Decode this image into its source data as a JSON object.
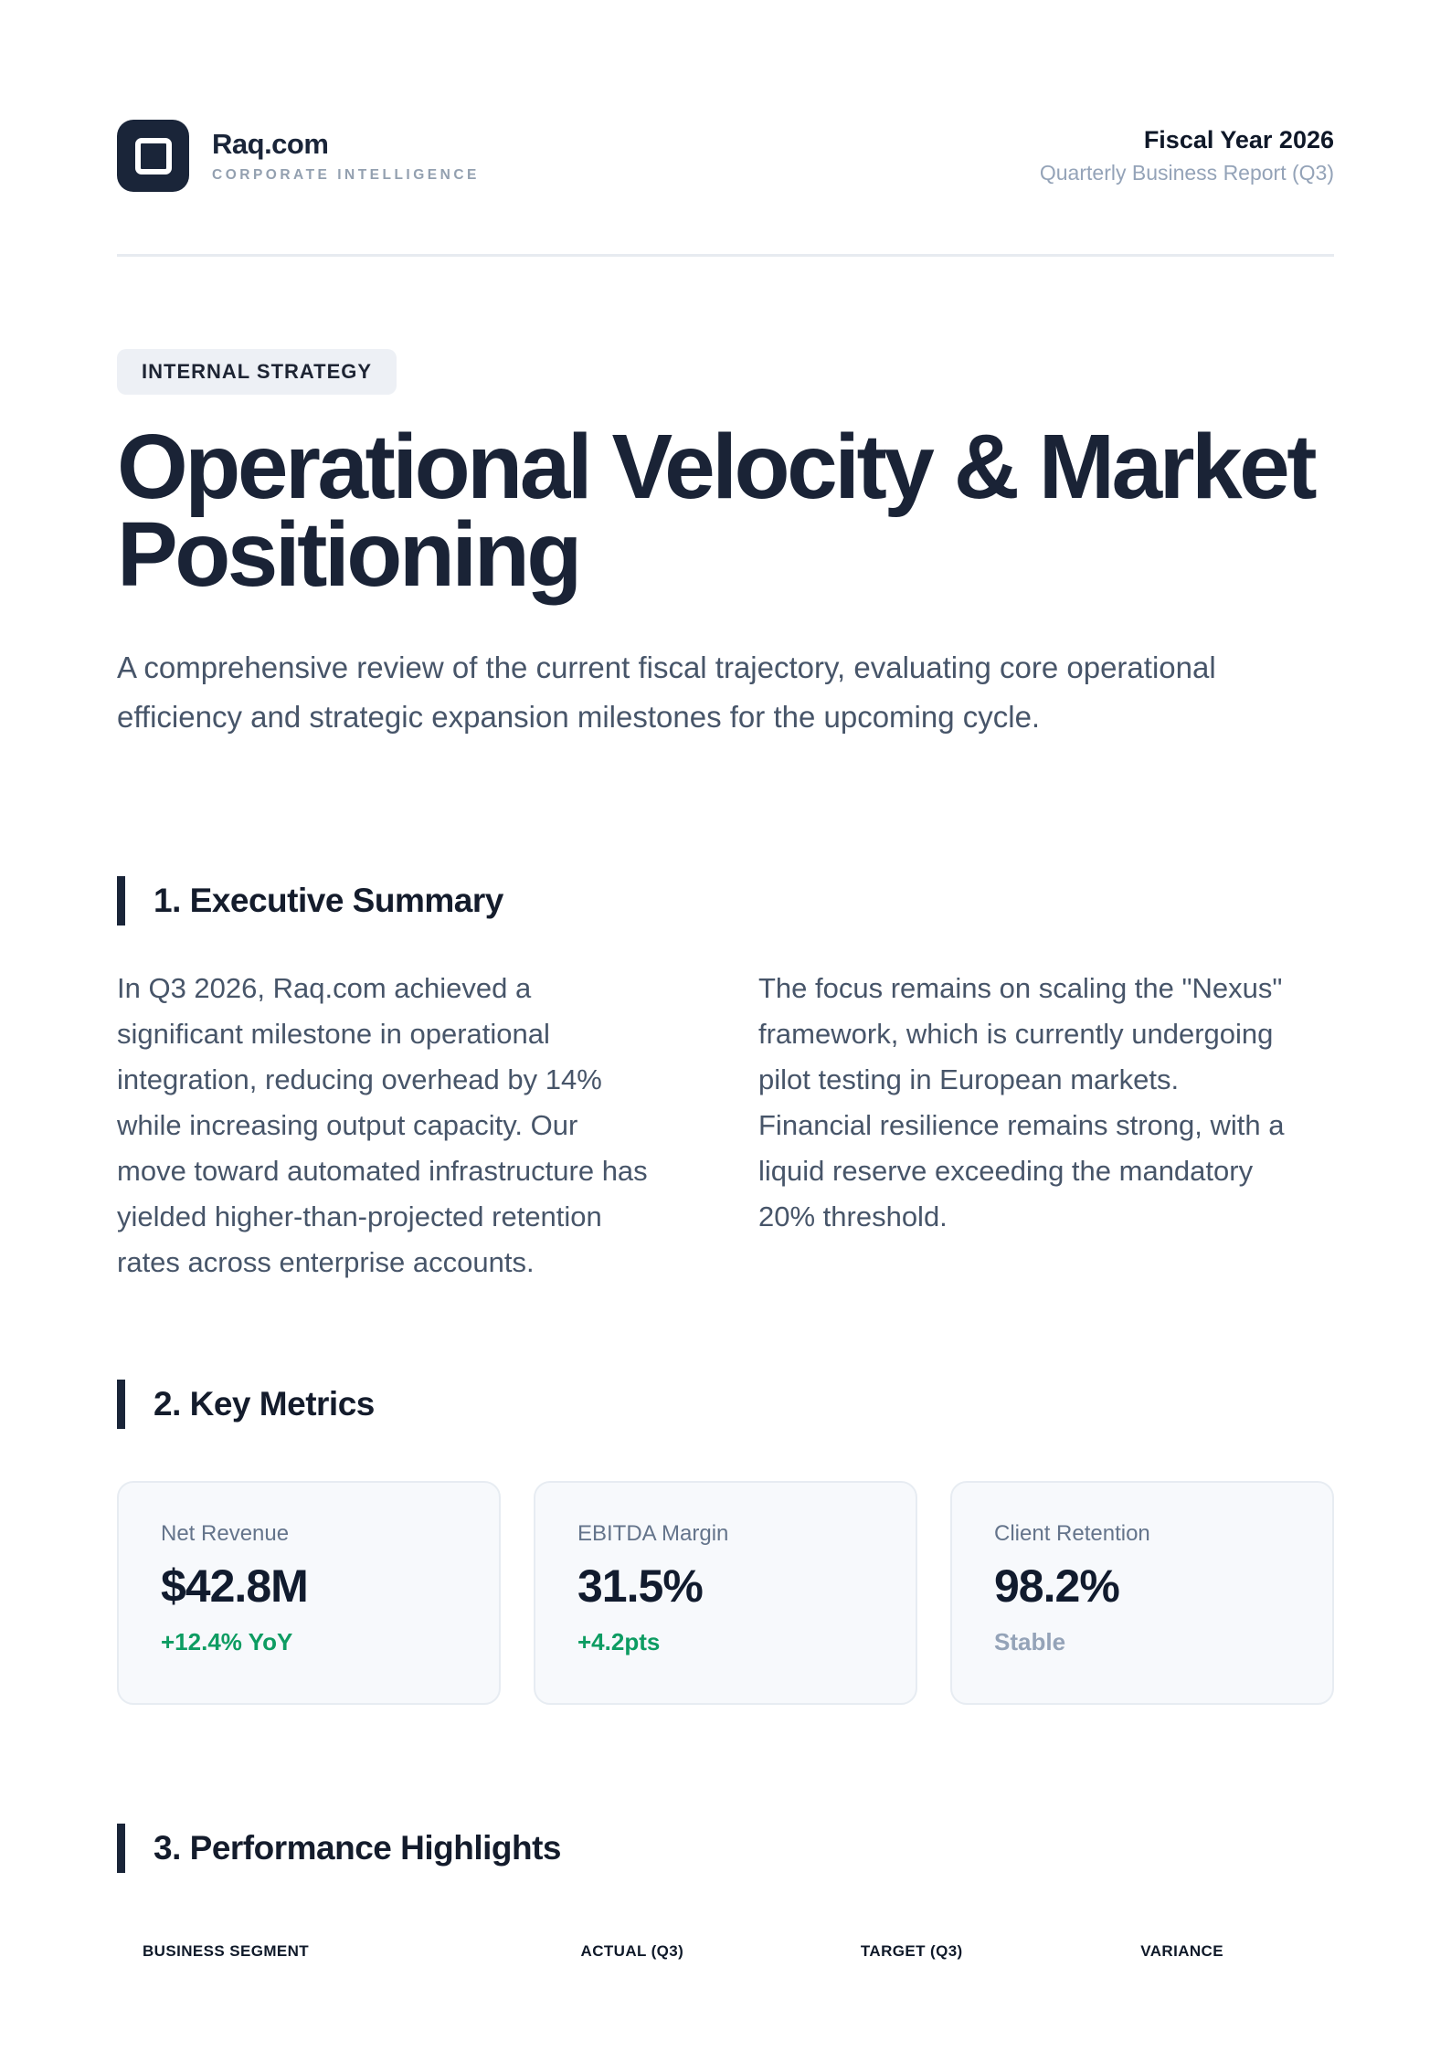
{
  "brand": {
    "name": "Raq.com",
    "tagline": "CORPORATE INTELLIGENCE"
  },
  "report_meta": {
    "fiscal_year": "Fiscal Year 2026",
    "subtitle": "Quarterly Business Report (Q3)"
  },
  "hero": {
    "badge": "INTERNAL STRATEGY",
    "title": "Operational Velocity & Market Positioning",
    "lede": "A comprehensive review of the current fiscal trajectory, evaluating core operational efficiency and strategic expansion milestones for the upcoming cycle."
  },
  "executive_summary": {
    "heading": "1. Executive Summary",
    "paragraphs": [
      "In Q3 2026, Raq.com achieved a significant milestone in operational integration, reducing overhead by 14% while increasing output capacity. Our move toward automated infrastructure has yielded higher-than-projected retention rates across enterprise accounts.",
      "The focus remains on scaling the \"Nexus\" framework, which is currently undergoing pilot testing in European markets. Financial resilience remains strong, with a liquid reserve exceeding the mandatory 20% threshold."
    ]
  },
  "key_metrics": {
    "heading": "2. Key Metrics",
    "cards": [
      {
        "label": "Net Revenue",
        "value": "$42.8M",
        "delta": "+12.4% YoY"
      },
      {
        "label": "EBITDA Margin",
        "value": "31.5%",
        "delta": "+4.2pts"
      },
      {
        "label": "Client Retention",
        "value": "98.2%",
        "delta": "Stable"
      }
    ]
  },
  "performance": {
    "heading": "3. Performance Highlights",
    "table": {
      "columns": [
        "BUSINESS SEGMENT",
        "ACTUAL (Q3)",
        "TARGET (Q3)",
        "VARIANCE"
      ]
    }
  },
  "colors": {
    "navy": "#1A2539",
    "green": "#0D9C62",
    "slate": "#475569",
    "muted_blue_gray": "#94A3B8",
    "badge_bg": "#EDF0F5",
    "card_bg": "#F7F9FC"
  }
}
